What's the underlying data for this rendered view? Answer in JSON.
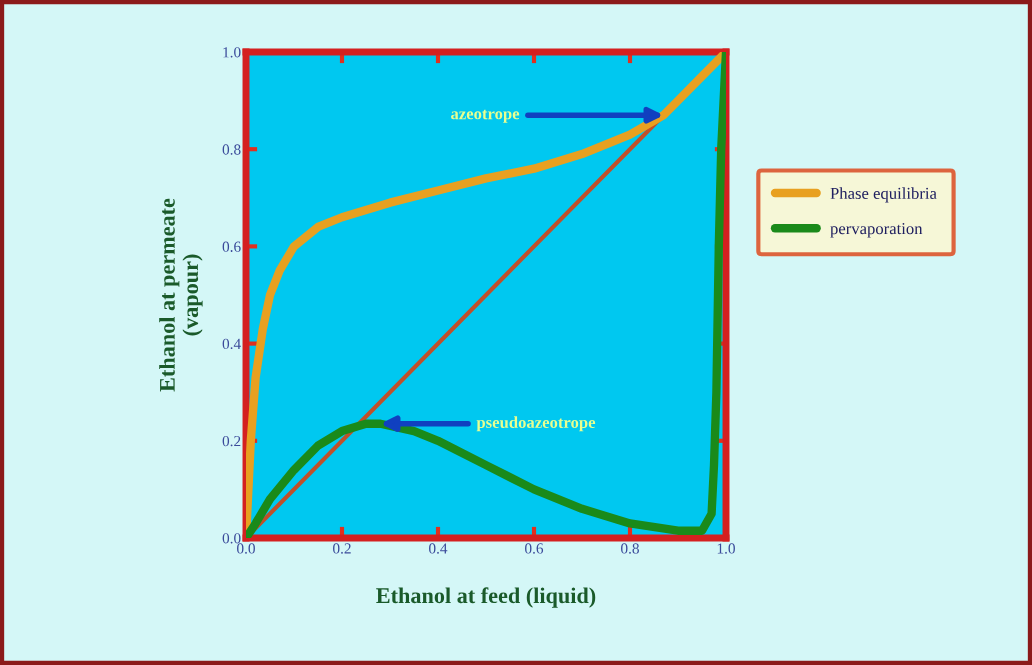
{
  "chart_data": {
    "type": "line",
    "xlabel": "Ethanol at feed (liquid)",
    "ylabel": "Ethanol at permeate\n(vapour)",
    "series": [
      {
        "name": "Phase equilibria",
        "color": "#e8a020",
        "x": [
          0,
          0.005,
          0.01,
          0.02,
          0.035,
          0.05,
          0.07,
          0.1,
          0.15,
          0.2,
          0.3,
          0.4,
          0.5,
          0.6,
          0.7,
          0.8,
          0.87,
          0.9,
          0.95,
          1.0
        ],
        "values": [
          0,
          0.1,
          0.2,
          0.33,
          0.43,
          0.5,
          0.55,
          0.6,
          0.64,
          0.66,
          0.69,
          0.715,
          0.74,
          0.76,
          0.79,
          0.83,
          0.87,
          0.9,
          0.95,
          1.0
        ]
      },
      {
        "name": "pervaporation",
        "color": "#1a8a1a",
        "x": [
          0,
          0.02,
          0.05,
          0.1,
          0.15,
          0.2,
          0.25,
          0.28,
          0.35,
          0.4,
          0.5,
          0.6,
          0.7,
          0.8,
          0.9,
          0.95,
          0.97,
          0.975,
          0.98,
          0.985,
          0.99,
          1.0
        ],
        "values": [
          0,
          0.03,
          0.08,
          0.14,
          0.19,
          0.22,
          0.235,
          0.235,
          0.22,
          0.2,
          0.15,
          0.1,
          0.06,
          0.03,
          0.015,
          0.015,
          0.05,
          0.15,
          0.3,
          0.6,
          0.8,
          1.0
        ]
      },
      {
        "color": "#c0502a",
        "x": [
          0,
          1
        ],
        "values": [
          0,
          1
        ]
      }
    ],
    "annotations": [
      {
        "text": "azeotrope",
        "x": 0.87,
        "y": 0.87
      },
      {
        "text": "pseudoazeotrope",
        "x": 0.28,
        "y": 0.235
      }
    ],
    "xlim": [
      0,
      1
    ],
    "ylim": [
      0,
      1
    ],
    "xticks": [
      {
        "value": 0,
        "label": "0.0"
      },
      0.2,
      0.4,
      0.6,
      0.8,
      {
        "value": 1,
        "label": "1.0"
      }
    ],
    "yticks": [
      {
        "value": 0,
        "label": "0.0"
      },
      0.2,
      0.4,
      0.6,
      0.8,
      {
        "value": 1,
        "label": "1.0"
      }
    ],
    "grid": false,
    "legend": "right",
    "marker": "none",
    "line_style": "solid"
  }
}
